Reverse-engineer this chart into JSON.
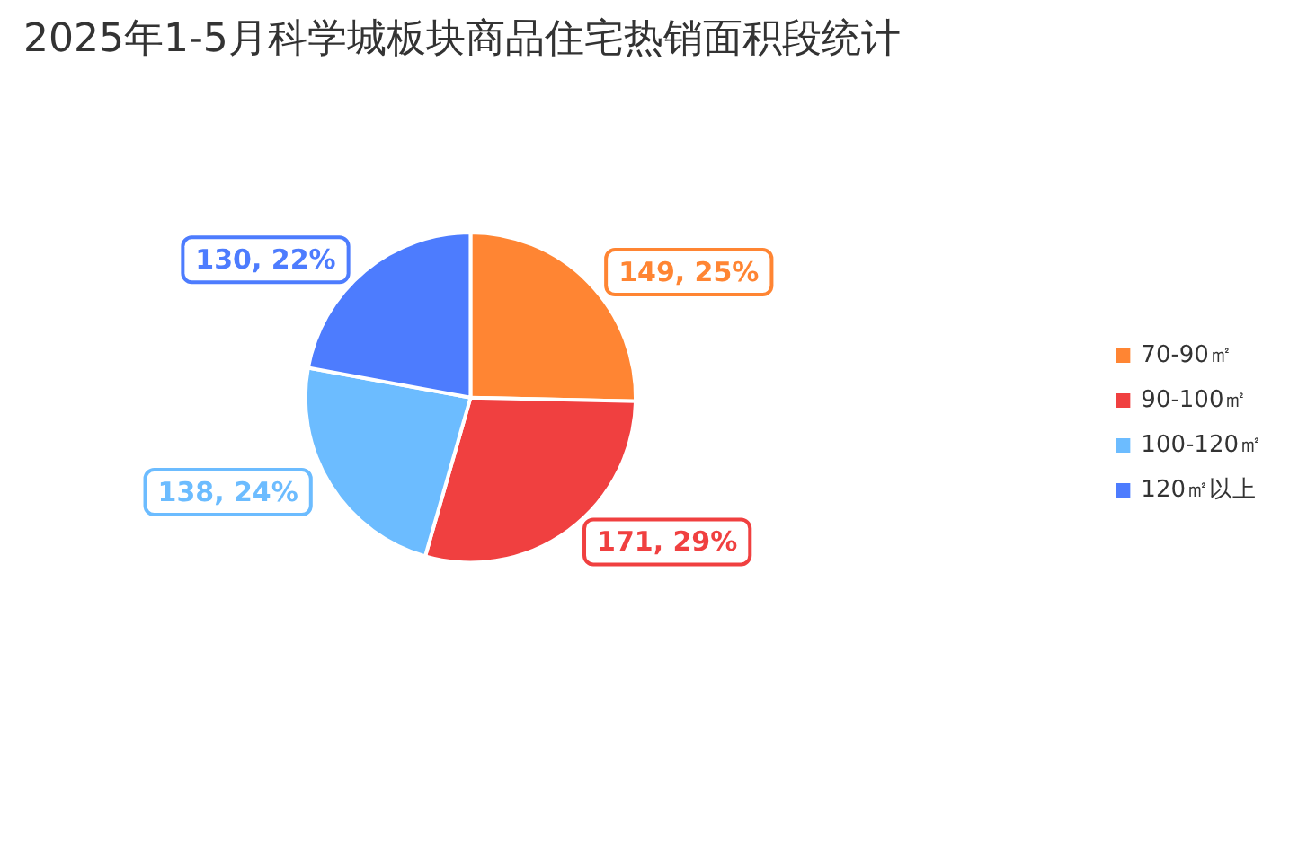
{
  "chart_data": {
    "type": "pie",
    "title": "2025年1-5月科学城板块商品住宅热销面积段统计",
    "categories": [
      "70-90㎡",
      "90-100㎡",
      "100-120㎡",
      "120㎡以上"
    ],
    "values": [
      149,
      171,
      138,
      130
    ],
    "value_labels": [
      "149, 25%",
      "171, 29%",
      "138, 24%",
      "130, 22%"
    ],
    "colors": [
      "#ff8533",
      "#f04040",
      "#6cbcff",
      "#4d7cfe"
    ],
    "legend": "right"
  }
}
